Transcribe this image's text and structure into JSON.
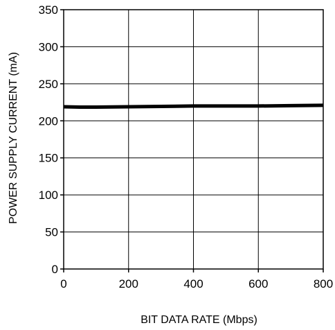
{
  "chart_data": {
    "type": "line",
    "title": "",
    "xlabel": "BIT DATA RATE (Mbps)",
    "ylabel": "POWER SUPPLY CURRENT (mA)",
    "xlim": [
      0,
      800
    ],
    "ylim": [
      0,
      350
    ],
    "xticks": [
      "0",
      "200",
      "400",
      "600",
      "800"
    ],
    "yticks": [
      "0",
      "50",
      "100",
      "150",
      "200",
      "250",
      "300",
      "350"
    ],
    "grid": true,
    "series": [
      {
        "x": [
          0,
          50,
          100,
          200,
          300,
          400,
          500,
          600,
          700,
          800
        ],
        "y": [
          219,
          218.5,
          218.5,
          219,
          219.5,
          220,
          220,
          220,
          220.5,
          221
        ]
      }
    ]
  }
}
